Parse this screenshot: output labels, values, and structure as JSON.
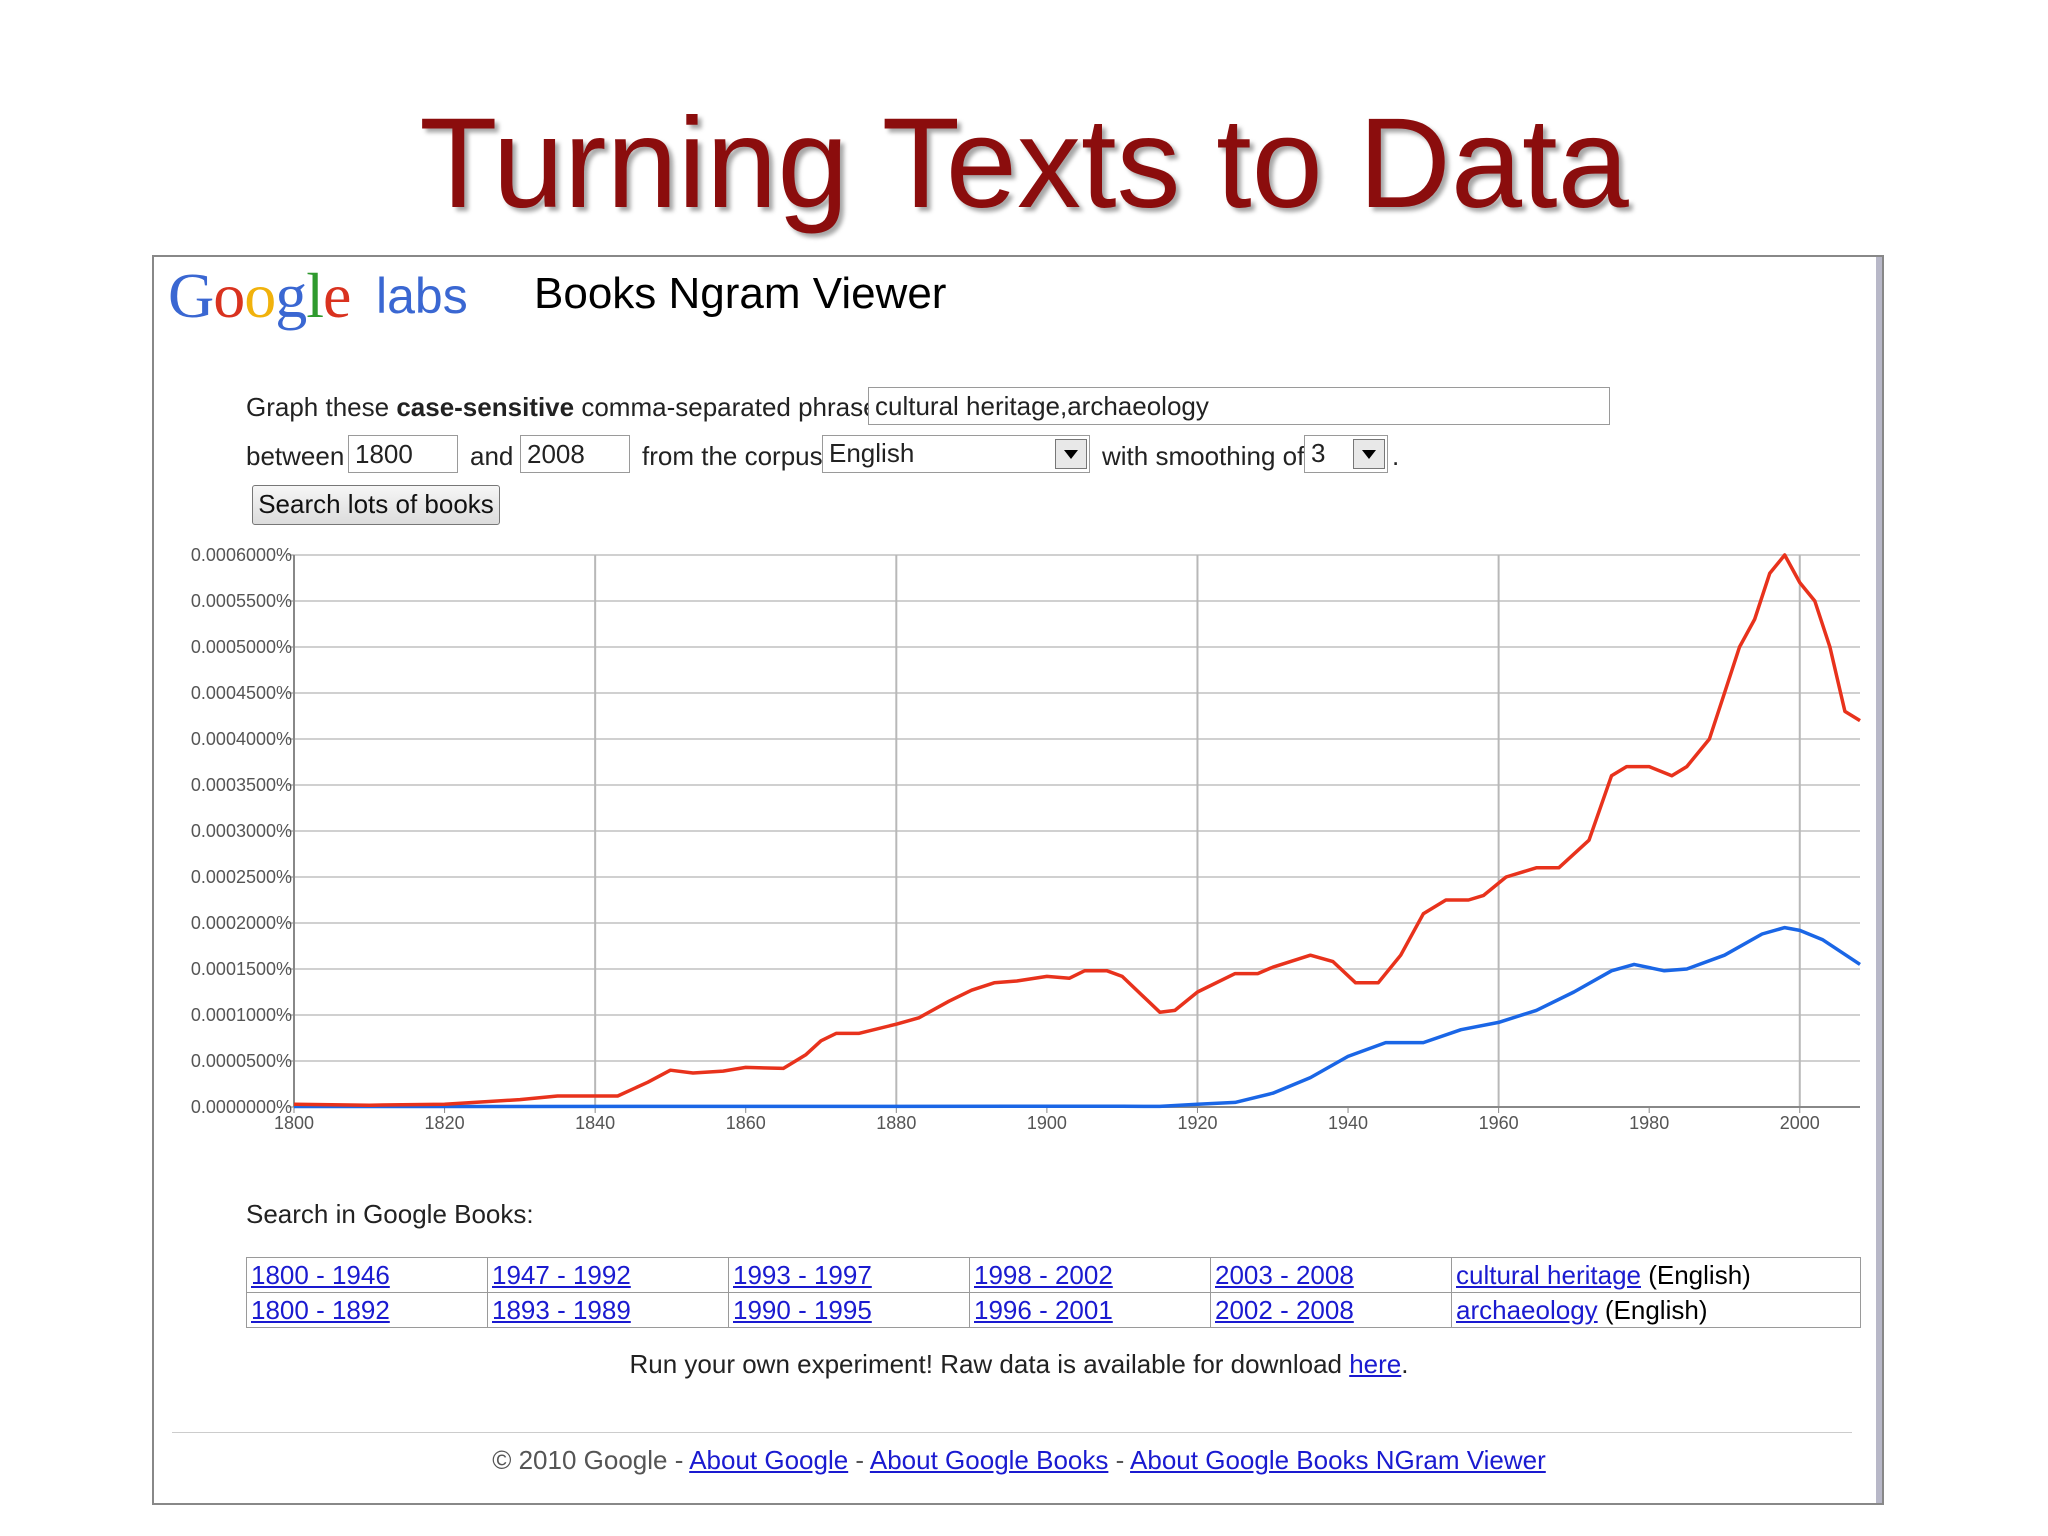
{
  "slide": {
    "title": "Turning Texts to Data"
  },
  "header": {
    "logo_text": "Google",
    "labs_text": "labs",
    "app_title": "Books Ngram Viewer"
  },
  "form": {
    "phrases_label_pre": "Graph these ",
    "phrases_label_bold": "case-sensitive",
    "phrases_label_post": " comma-separated phrases:",
    "phrases_value": "cultural heritage,archaeology",
    "between_label": "between",
    "start_year": "1800",
    "and_label": "and",
    "end_year": "2008",
    "corpus_label": "from the corpus",
    "corpus_value": "English",
    "smoothing_label": "with smoothing of",
    "smoothing_value": "3",
    "period": ".",
    "search_button": "Search lots of books"
  },
  "chart_data": {
    "type": "line",
    "title": "",
    "xlabel": "",
    "ylabel": "",
    "xlim": [
      1800,
      2008
    ],
    "ylim": [
      0,
      0.0006
    ],
    "grid": true,
    "legend_position": "top-center",
    "x_ticks": [
      "1800",
      "1820",
      "1840",
      "1860",
      "1880",
      "1900",
      "1920",
      "1940",
      "1960",
      "1980",
      "2000"
    ],
    "y_ticks": [
      "0.0000000%",
      "0.0000500%",
      "0.0001000%",
      "0.0001500%",
      "0.0002000%",
      "0.0002500%",
      "0.0003000%",
      "0.0003500%",
      "0.0004000%",
      "0.0004500%",
      "0.0005000%",
      "0.0005500%",
      "0.0006000%"
    ],
    "series": [
      {
        "name": "cultural heritage",
        "color": "#1a66e6",
        "x": [
          1800,
          1850,
          1900,
          1910,
          1915,
          1920,
          1925,
          1930,
          1935,
          1940,
          1945,
          1950,
          1955,
          1960,
          1965,
          1970,
          1975,
          1978,
          1982,
          1985,
          1990,
          1995,
          1998,
          2000,
          2003,
          2008
        ],
        "y": [
          5e-07,
          6e-07,
          8e-07,
          8e-07,
          6e-07,
          3e-06,
          5e-06,
          1.5e-05,
          3.2e-05,
          5.5e-05,
          7e-05,
          7e-05,
          8.4e-05,
          9.2e-05,
          0.000105,
          0.000125,
          0.000148,
          0.000155,
          0.000148,
          0.00015,
          0.000165,
          0.000188,
          0.000195,
          0.000192,
          0.000182,
          0.000155
        ]
      },
      {
        "name": "archaeology",
        "color": "#e8321c",
        "x": [
          1800,
          1810,
          1820,
          1830,
          1835,
          1840,
          1843,
          1847,
          1850,
          1853,
          1857,
          1860,
          1865,
          1868,
          1870,
          1872,
          1875,
          1880,
          1883,
          1887,
          1890,
          1893,
          1896,
          1900,
          1903,
          1905,
          1908,
          1910,
          1915,
          1917,
          1920,
          1925,
          1928,
          1930,
          1935,
          1938,
          1941,
          1944,
          1947,
          1950,
          1953,
          1956,
          1958,
          1961,
          1965,
          1968,
          1972,
          1975,
          1977,
          1980,
          1983,
          1985,
          1988,
          1990,
          1992,
          1994,
          1996,
          1998,
          2000,
          2002,
          2004,
          2006,
          2008
        ],
        "y": [
          3e-06,
          2e-06,
          3e-06,
          8e-06,
          1.2e-05,
          1.2e-05,
          1.2e-05,
          2.7e-05,
          4e-05,
          3.7e-05,
          3.9e-05,
          4.3e-05,
          4.2e-05,
          5.7e-05,
          7.2e-05,
          8e-05,
          8e-05,
          9e-05,
          9.7e-05,
          0.000115,
          0.000127,
          0.000135,
          0.000137,
          0.000142,
          0.00014,
          0.000148,
          0.000148,
          0.000142,
          0.000103,
          0.000105,
          0.000125,
          0.000145,
          0.000145,
          0.000152,
          0.000165,
          0.000158,
          0.000135,
          0.000135,
          0.000165,
          0.00021,
          0.000225,
          0.000225,
          0.00023,
          0.00025,
          0.00026,
          0.00026,
          0.00029,
          0.00036,
          0.00037,
          0.00037,
          0.00036,
          0.00037,
          0.0004,
          0.00045,
          0.0005,
          0.00053,
          0.00058,
          0.0006,
          0.00057,
          0.00055,
          0.0005,
          0.00043,
          0.00042
        ]
      }
    ]
  },
  "search_in": {
    "label": "Search in Google Books:",
    "rows": [
      {
        "ranges": [
          "1800 - 1946",
          "1947 - 1992",
          "1993 - 1997",
          "1998 - 2002",
          "2003 - 2008"
        ],
        "phrase": "cultural heritage",
        "corpus": " (English)"
      },
      {
        "ranges": [
          "1800 - 1892",
          "1893 - 1989",
          "1990 - 1995",
          "1996 - 2001",
          "2002 - 2008"
        ],
        "phrase": "archaeology",
        "corpus": " (English)"
      }
    ]
  },
  "raw_data": {
    "text": "Run your own experiment! Raw data is available for download ",
    "link": "here",
    "end": "."
  },
  "footer": {
    "copyright": "© 2010 Google - ",
    "links": [
      "About Google",
      "About Google Books",
      "About Google Books NGram Viewer"
    ],
    "sep": " - "
  }
}
